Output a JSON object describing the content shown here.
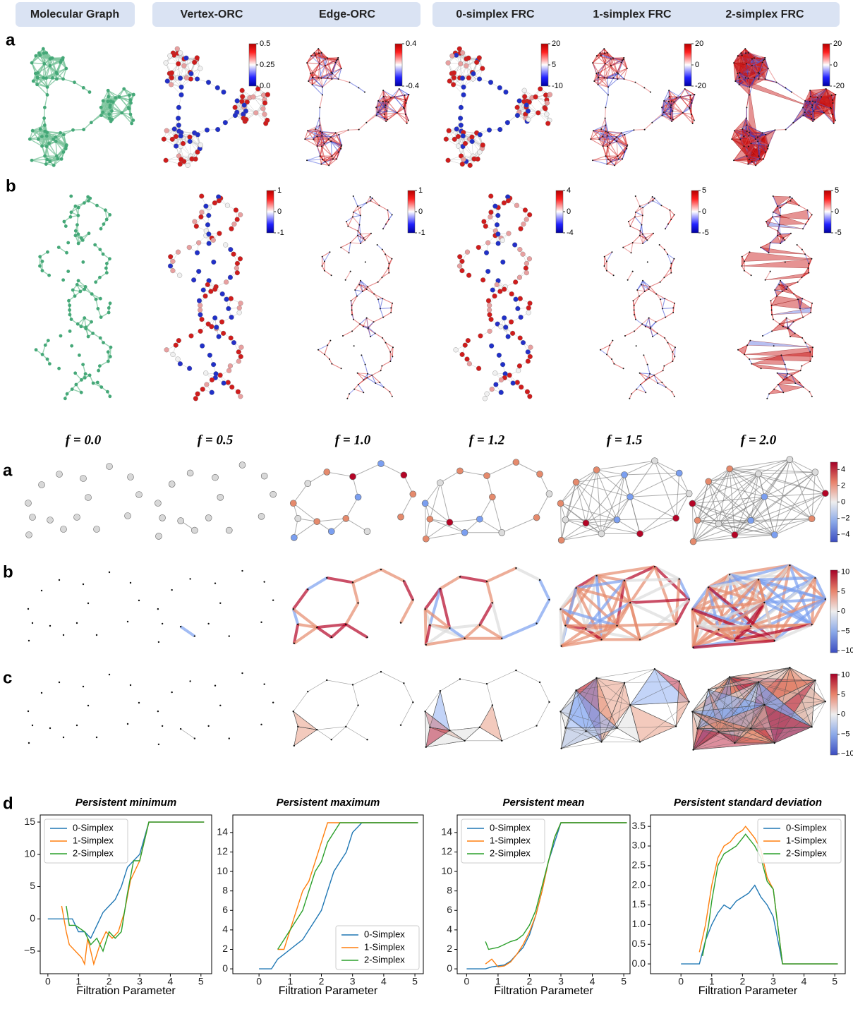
{
  "header": {
    "molecular": "Molecular Graph",
    "orc": [
      "Vertex-ORC",
      "Edge-ORC"
    ],
    "frc": [
      "0-simplex FRC",
      "1-simplex FRC",
      "2-simplex FRC"
    ]
  },
  "top_panels": {
    "labels": [
      "a",
      "b"
    ],
    "colorbars": [
      [
        {
          "lim": [
            0,
            0.5
          ],
          "ticks": [
            0.5,
            0.25,
            {
              "value": 0,
              "label": "0.0"
            }
          ]
        },
        {
          "lim": [
            -0.4,
            0.4
          ],
          "ticks": [
            0.4,
            -0.4
          ]
        },
        {
          "lim": [
            -10,
            20
          ],
          "ticks": [
            20,
            5,
            -10
          ]
        },
        {
          "lim": [
            -20,
            20
          ],
          "ticks": [
            20,
            0,
            -20
          ]
        },
        {
          "lim": [
            -20,
            20
          ],
          "ticks": [
            20,
            0,
            -20
          ]
        }
      ],
      [
        {
          "lim": [
            -1,
            1
          ],
          "ticks": [
            1,
            0,
            -1
          ]
        },
        {
          "lim": [
            -1,
            1
          ],
          "ticks": [
            1,
            0,
            -1
          ]
        },
        {
          "lim": [
            -4,
            4
          ],
          "ticks": [
            4,
            0,
            -4
          ]
        },
        {
          "lim": [
            -5,
            5
          ],
          "ticks": [
            5,
            0,
            -5
          ]
        },
        {
          "lim": [
            -5,
            5
          ],
          "ticks": [
            5,
            0,
            -5
          ]
        }
      ]
    ]
  },
  "filtration": {
    "titles": [
      "f = 0.0",
      "f = 0.5",
      "f = 1.0",
      "f = 1.2",
      "f = 1.5",
      "f = 2.0"
    ],
    "rows": [
      "a",
      "b",
      "c"
    ],
    "colorbars": [
      {
        "lim": [
          -4.9,
          4.9
        ],
        "ticks": [
          4,
          2,
          0,
          {
            "value": -2,
            "label": "−2"
          },
          {
            "value": -4,
            "label": "−4"
          }
        ]
      },
      {
        "lim": [
          -10.5,
          10.5
        ],
        "ticks": [
          10,
          5,
          0,
          {
            "value": -5,
            "label": "−5"
          },
          {
            "value": -10,
            "label": "−10"
          }
        ]
      },
      {
        "lim": [
          -10.3,
          10.3
        ],
        "ticks": [
          10,
          5,
          0,
          {
            "value": -5,
            "label": "−5"
          },
          {
            "value": -10,
            "label": "−10"
          }
        ]
      }
    ]
  },
  "panel_d_label": "d",
  "chart_data": [
    {
      "type": "line",
      "title": "Persistent minimum",
      "x_label": "Filtration Parameter",
      "legend": "upper left",
      "xlim": [
        -0.25,
        5.35
      ],
      "xticks": [
        0,
        1,
        2,
        3,
        4,
        5
      ],
      "ylim": [
        -8.5,
        16.1
      ],
      "yticks": [
        {
          "value": -5,
          "label": "−5"
        },
        0,
        5,
        10,
        15
      ],
      "series": [
        {
          "name": "0-Simplex",
          "color": "#1f77b4",
          "x": [
            0,
            0.8,
            0.9,
            1.0,
            1.2,
            1.4,
            1.6,
            1.8,
            2.0,
            2.2,
            2.4,
            2.6,
            2.8,
            3.0,
            3.3,
            5.1
          ],
          "values": [
            0,
            0,
            -1,
            -2,
            -2,
            -3,
            -1,
            1,
            2,
            3,
            5,
            8,
            9,
            10,
            15,
            15
          ]
        },
        {
          "name": "1-Simplex",
          "color": "#ff7f0e",
          "x": [
            0.45,
            0.6,
            0.7,
            0.9,
            1.1,
            1.2,
            1.3,
            1.5,
            1.7,
            1.9,
            2.1,
            2.3,
            2.5,
            2.7,
            3.0,
            3.3,
            5.1
          ],
          "values": [
            2,
            -2,
            -4,
            -5,
            -6,
            -7,
            -3,
            -7,
            -4,
            -2,
            -3,
            -2,
            1,
            6,
            9,
            15,
            15
          ]
        },
        {
          "name": "2-Simplex",
          "color": "#2ca02c",
          "x": [
            0.6,
            0.7,
            0.9,
            1.2,
            1.4,
            1.6,
            1.8,
            2.0,
            2.2,
            2.4,
            2.6,
            2.8,
            3.0,
            3.3,
            5.1
          ],
          "values": [
            2,
            -1,
            -1,
            -2,
            -4,
            -3,
            -5,
            -2,
            -3,
            -2,
            4,
            9,
            9,
            15,
            15
          ]
        }
      ]
    },
    {
      "type": "line",
      "title": "Persistent maximum",
      "x_label": "Filtration Parameter",
      "legend": "lower right",
      "xlim": [
        -0.84,
        5.27
      ],
      "xticks": [
        0,
        1,
        2,
        3,
        4,
        5
      ],
      "ylim": [
        -0.5,
        15.8
      ],
      "yticks": [
        0,
        2,
        4,
        6,
        8,
        10,
        12,
        14
      ],
      "series": [
        {
          "name": "0-Simplex",
          "color": "#1f77b4",
          "x": [
            0,
            0.4,
            0.6,
            0.8,
            1.0,
            1.2,
            1.4,
            1.6,
            1.8,
            2.0,
            2.2,
            2.4,
            2.6,
            2.8,
            3.0,
            3.3,
            5.1
          ],
          "values": [
            0,
            0,
            1,
            1.5,
            2,
            2.5,
            3,
            4,
            5,
            6,
            8,
            10,
            11,
            12,
            14,
            15,
            15
          ]
        },
        {
          "name": "1-Simplex",
          "color": "#ff7f0e",
          "x": [
            0.6,
            0.8,
            1.0,
            1.2,
            1.4,
            1.6,
            1.8,
            2.0,
            2.2,
            2.4,
            5.1
          ],
          "values": [
            2,
            2,
            4,
            6,
            8,
            9,
            11,
            13,
            15,
            15,
            15
          ]
        },
        {
          "name": "2-Simplex",
          "color": "#2ca02c",
          "x": [
            0.6,
            0.8,
            1.0,
            1.2,
            1.4,
            1.6,
            1.8,
            2.0,
            2.2,
            2.4,
            2.6,
            5.1
          ],
          "values": [
            2,
            3,
            4,
            5,
            6,
            8,
            10,
            11,
            13,
            14,
            15,
            15
          ]
        }
      ]
    },
    {
      "type": "line",
      "title": "Persistent mean",
      "x_label": "Filtration Parameter",
      "legend": "upper left",
      "xlim": [
        -0.3,
        5.2
      ],
      "xticks": [
        0,
        1,
        2,
        3,
        4,
        5
      ],
      "ylim": [
        -0.5,
        15.8
      ],
      "yticks": [
        0,
        2,
        4,
        6,
        8,
        10,
        12,
        14
      ],
      "series": [
        {
          "name": "0-Simplex",
          "color": "#1f77b4",
          "x": [
            0,
            0.6,
            0.8,
            1.0,
            1.2,
            1.4,
            1.6,
            1.8,
            2.0,
            2.2,
            2.4,
            2.6,
            2.8,
            3.0,
            5.1
          ],
          "values": [
            0,
            0,
            0.2,
            0.3,
            0.4,
            0.8,
            1.5,
            2.2,
            3.5,
            5.5,
            8,
            11,
            13,
            15,
            15
          ]
        },
        {
          "name": "1-Simplex",
          "color": "#ff7f0e",
          "x": [
            0.6,
            0.8,
            1.0,
            1.2,
            1.4,
            1.6,
            1.8,
            2.0,
            2.2,
            2.4,
            2.6,
            2.8,
            3.0,
            5.1
          ],
          "values": [
            0.5,
            1,
            0.2,
            0.3,
            0.7,
            1.5,
            2.5,
            3.8,
            5.5,
            8,
            11,
            13.5,
            15,
            15
          ]
        },
        {
          "name": "2-Simplex",
          "color": "#2ca02c",
          "x": [
            0.6,
            0.7,
            1.0,
            1.2,
            1.4,
            1.6,
            1.8,
            2.0,
            2.2,
            2.4,
            2.6,
            2.8,
            3.0,
            5.1
          ],
          "values": [
            2.8,
            2,
            2.2,
            2.5,
            2.8,
            3,
            3.5,
            4.5,
            6,
            8.5,
            11,
            13.5,
            15,
            15
          ]
        }
      ]
    },
    {
      "type": "line",
      "title": "Persistent standard deviation",
      "x_label": "Filtration Parameter",
      "legend": "upper right",
      "xlim": [
        -0.99,
        5.34
      ],
      "xticks": [
        0,
        1,
        2,
        3,
        4,
        5
      ],
      "ylim": [
        -0.25,
        3.79
      ],
      "yticks": [
        {
          "value": 0,
          "label": "0.0"
        },
        0.5,
        {
          "value": 1,
          "label": "1.0"
        },
        1.5,
        {
          "value": 2,
          "label": "2.0"
        },
        2.5,
        {
          "value": 3,
          "label": "3.0"
        },
        3.5
      ],
      "series": [
        {
          "name": "0-Simplex",
          "color": "#1f77b4",
          "x": [
            0,
            0.6,
            0.8,
            1.0,
            1.2,
            1.4,
            1.6,
            1.8,
            2.0,
            2.2,
            2.4,
            2.6,
            2.8,
            3.0,
            3.3,
            5.1
          ],
          "values": [
            0,
            0,
            0.6,
            1.0,
            1.3,
            1.5,
            1.4,
            1.6,
            1.7,
            1.8,
            2.0,
            1.7,
            1.5,
            1.2,
            0,
            0
          ]
        },
        {
          "name": "1-Simplex",
          "color": "#ff7f0e",
          "x": [
            0.6,
            0.8,
            1.0,
            1.2,
            1.4,
            1.6,
            1.8,
            2.0,
            2.1,
            2.2,
            2.4,
            2.6,
            2.8,
            3.0,
            3.3,
            5.1
          ],
          "values": [
            0.3,
            1,
            2,
            2.7,
            3.0,
            3.1,
            3.3,
            3.4,
            3.5,
            3.4,
            3.2,
            2.9,
            2.2,
            1.9,
            0,
            0
          ]
        },
        {
          "name": "2-Simplex",
          "color": "#2ca02c",
          "x": [
            0.7,
            0.9,
            1.0,
            1.2,
            1.4,
            1.6,
            1.8,
            2.0,
            2.1,
            2.2,
            2.4,
            2.6,
            2.8,
            3.0,
            3.3,
            5.1
          ],
          "values": [
            0.2,
            1.0,
            1.6,
            2.5,
            2.8,
            2.9,
            3.0,
            3.2,
            3.3,
            3.2,
            3.0,
            2.7,
            2.1,
            1.9,
            0,
            0
          ]
        }
      ]
    }
  ]
}
